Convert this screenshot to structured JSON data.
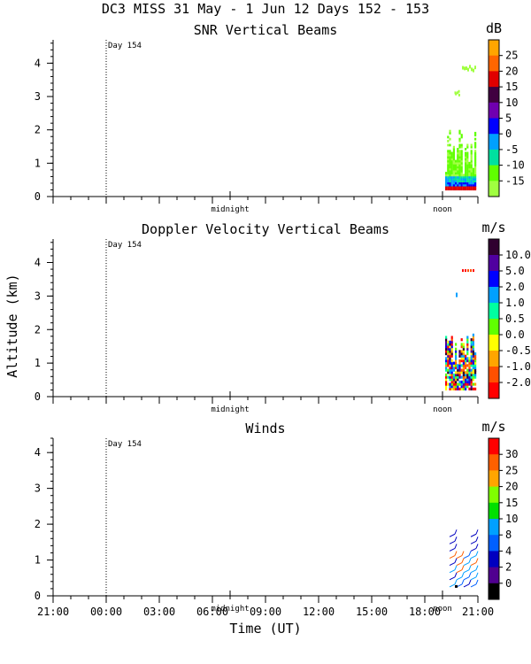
{
  "header": {
    "title": "DC3 MISS  31 May -  1 Jun 12 Days 152 - 153"
  },
  "y_axis_label": "Altitude (km)",
  "x_axis": {
    "label": "Time (UT)",
    "ticks": [
      "21:00",
      "00:00",
      "03:00",
      "06:00",
      "09:00",
      "12:00",
      "15:00",
      "18:00",
      "21:00"
    ],
    "tick_hours": [
      0,
      3,
      6,
      9,
      12,
      15,
      18,
      21,
      24
    ]
  },
  "chart_data": [
    {
      "type": "heatmap",
      "title": "SNR Vertical Beams",
      "xlabel": "",
      "ylabel": "",
      "xlim_hours": [
        0,
        24
      ],
      "ylim": [
        0,
        4.7
      ],
      "yticks": [
        "0",
        "1",
        "2",
        "3",
        "4"
      ],
      "ytick_values": [
        0,
        1,
        2,
        3,
        4
      ],
      "day_marker": {
        "label": "Day 154",
        "hour": 3
      },
      "annotations": [
        {
          "text": "midnight",
          "hour": 10
        },
        {
          "text": "noon",
          "hour": 22
        }
      ],
      "colorbar": {
        "unit": "dB",
        "labels": [
          "25",
          "20",
          "15",
          "10",
          "5",
          "0",
          "-5",
          "-10",
          "-15"
        ],
        "colors": [
          "#ffa500",
          "#ff6600",
          "#e00000",
          "#400040",
          "#7000b0",
          "#0000ff",
          "#00a0ff",
          "#00e0a0",
          "#60ff00",
          "#a0ff40"
        ]
      },
      "data_region": {
        "start_hour": 22.1,
        "end_hour": 24,
        "max_altitude_km": 4.0
      }
    },
    {
      "type": "heatmap",
      "title": "Doppler Velocity Vertical Beams",
      "xlabel": "",
      "ylabel": "Altitude (km)",
      "xlim_hours": [
        0,
        24
      ],
      "ylim": [
        0,
        4.7
      ],
      "yticks": [
        "0",
        "1",
        "2",
        "3",
        "4"
      ],
      "ytick_values": [
        0,
        1,
        2,
        3,
        4
      ],
      "day_marker": {
        "label": "Day 154",
        "hour": 3
      },
      "annotations": [
        {
          "text": "midnight",
          "hour": 10
        },
        {
          "text": "noon",
          "hour": 22
        }
      ],
      "colorbar": {
        "unit": "m/s",
        "labels": [
          "10.0",
          "5.0",
          "2.0",
          "1.0",
          "0.5",
          "0.0",
          "-0.5",
          "-1.0",
          "-2.0"
        ],
        "colors": [
          "#300030",
          "#5000a0",
          "#0000ff",
          "#00a0ff",
          "#00ffa0",
          "#60ff00",
          "#ffff00",
          "#ffa500",
          "#ff5000",
          "#ff0000"
        ]
      },
      "data_region": {
        "start_hour": 22.1,
        "end_hour": 24,
        "max_altitude_km": 3.9
      }
    },
    {
      "type": "scatter",
      "title": "Winds",
      "xlabel": "Time (UT)",
      "ylabel": "",
      "xlim_hours": [
        0,
        24
      ],
      "ylim": [
        0,
        4.4
      ],
      "yticks": [
        "0",
        "1",
        "2",
        "3",
        "4"
      ],
      "ytick_values": [
        0,
        1,
        2,
        3,
        4
      ],
      "day_marker": {
        "label": "Day 154",
        "hour": 3
      },
      "annotations": [
        {
          "text": "midnight",
          "hour": 10
        },
        {
          "text": "noon",
          "hour": 22
        }
      ],
      "colorbar": {
        "unit": "m/s",
        "labels": [
          "30",
          "25",
          "20",
          "15",
          "10",
          "8",
          "4",
          "2",
          "0"
        ],
        "colors": [
          "#ff0000",
          "#ff6000",
          "#ffa500",
          "#80ff00",
          "#00e000",
          "#00a0ff",
          "#0060ff",
          "#0000c0",
          "#500090",
          "#000000"
        ]
      },
      "data_region": {
        "start_hour": 22.1,
        "end_hour": 24,
        "max_altitude_km": 1.8
      }
    }
  ]
}
